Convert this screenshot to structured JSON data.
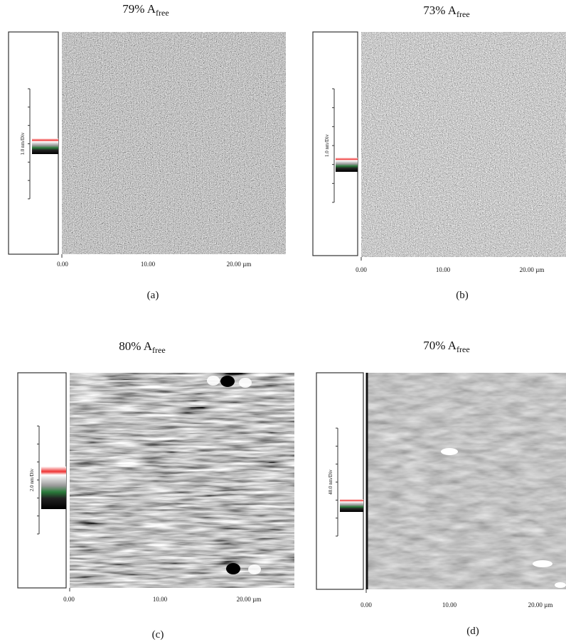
{
  "panels": [
    {
      "title": "79% A",
      "title_sub": "free",
      "scale_label": "1.0 nm/Div",
      "x_ticks": [
        "0.00",
        "10.00",
        "20.00 µm"
      ],
      "caption": "(a)"
    },
    {
      "title": "73% A",
      "title_sub": "free",
      "scale_label": "1.0 nm/Div",
      "x_ticks": [
        "0.00",
        "10.00",
        "20.00 µm"
      ],
      "caption": "(b)"
    },
    {
      "title": "80% A",
      "title_sub": "free",
      "scale_label": "2.0 nm/Div",
      "x_ticks": [
        "0.00",
        "10.00",
        "20.00 µm"
      ],
      "caption": "(c)"
    },
    {
      "title": "70% A",
      "title_sub": "free",
      "scale_label": "40.0 nm/Div",
      "x_ticks": [
        "0.00",
        "10.00",
        "20.00 µm"
      ],
      "caption": "(d)"
    }
  ]
}
